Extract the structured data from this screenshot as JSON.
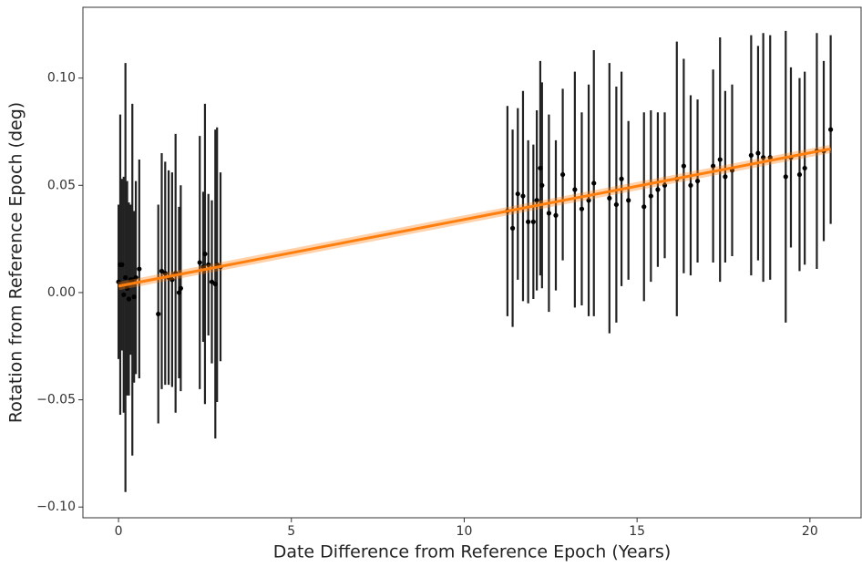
{
  "chart_data": {
    "type": "errorbar",
    "xlabel": "Date Difference from Reference Epoch (Years)",
    "ylabel": "Rotation from Reference Epoch (deg)",
    "xlim": [
      -1.03,
      21.48
    ],
    "ylim": [
      -0.105,
      0.133
    ],
    "xticks": [
      0,
      5,
      10,
      15,
      20
    ],
    "yticks": [
      {
        "value": -0.1,
        "label": "−0.10"
      },
      {
        "value": -0.05,
        "label": "−0.05"
      },
      {
        "value": 0,
        "label": "0.00"
      },
      {
        "value": 0.05,
        "label": "0.05"
      },
      {
        "value": 0.1,
        "label": "0.10"
      }
    ],
    "series": [
      {
        "type": "errorbar",
        "color": "#222222",
        "x": [
          0.0,
          0.05,
          0.1,
          0.15,
          0.2,
          0.25,
          0.3,
          0.35,
          0.4,
          0.45,
          0.5,
          0.6,
          1.15,
          1.25,
          1.35,
          1.45,
          1.55,
          1.65,
          1.75,
          1.8,
          2.35,
          2.45,
          2.5,
          2.6,
          2.7,
          2.8,
          2.85,
          2.95,
          11.25,
          11.4,
          11.55,
          11.7,
          11.85,
          12.0,
          12.1,
          12.2,
          12.25,
          12.45,
          12.65,
          12.85,
          13.2,
          13.4,
          13.6,
          13.75,
          14.2,
          14.4,
          14.55,
          14.75,
          15.2,
          15.4,
          15.6,
          15.8,
          16.15,
          16.35,
          16.55,
          16.75,
          17.2,
          17.4,
          17.55,
          17.75,
          18.3,
          18.5,
          18.65,
          18.85,
          19.3,
          19.45,
          19.7,
          19.85,
          20.2,
          20.4,
          20.6
        ],
        "values": [
          0.005,
          0.013,
          0.013,
          -0.001,
          0.007,
          0.002,
          -0.003,
          0.006,
          0.006,
          -0.002,
          0.007,
          0.011,
          -0.01,
          0.01,
          0.009,
          0.007,
          0.006,
          0.009,
          0.0,
          0.002,
          0.014,
          0.012,
          0.018,
          0.013,
          0.005,
          0.004,
          0.013,
          0.012,
          0.038,
          0.03,
          0.046,
          0.045,
          0.033,
          0.033,
          0.043,
          0.058,
          0.05,
          0.037,
          0.036,
          0.055,
          0.048,
          0.039,
          0.043,
          0.051,
          0.044,
          0.041,
          0.053,
          0.043,
          0.04,
          0.045,
          0.048,
          0.05,
          0.053,
          0.059,
          0.05,
          0.052,
          0.059,
          0.062,
          0.054,
          0.057,
          0.064,
          0.065,
          0.063,
          0.063,
          0.054,
          0.063,
          0.055,
          0.058,
          0.066,
          0.066,
          0.076
        ],
        "errors": [
          0.036,
          0.07,
          0.04,
          0.055,
          0.1,
          0.05,
          0.045,
          0.035,
          0.082,
          0.04,
          0.045,
          0.051,
          0.051,
          0.055,
          0.052,
          0.05,
          0.05,
          0.065,
          0.04,
          0.048,
          0.059,
          0.035,
          0.07,
          0.033,
          0.038,
          0.072,
          0.064,
          0.044,
          0.049,
          0.046,
          0.04,
          0.049,
          0.038,
          0.036,
          0.042,
          0.05,
          0.048,
          0.046,
          0.035,
          0.04,
          0.055,
          0.045,
          0.054,
          0.062,
          0.063,
          0.055,
          0.05,
          0.037,
          0.044,
          0.04,
          0.036,
          0.034,
          0.064,
          0.05,
          0.042,
          0.038,
          0.045,
          0.057,
          0.04,
          0.04,
          0.056,
          0.05,
          0.058,
          0.057,
          0.068,
          0.042,
          0.045,
          0.045,
          0.055,
          0.042,
          0.044
        ]
      },
      {
        "type": "line",
        "color": "#ff7f0e",
        "x": [
          0,
          20.6
        ],
        "values": [
          0.003,
          0.067
        ]
      }
    ]
  }
}
